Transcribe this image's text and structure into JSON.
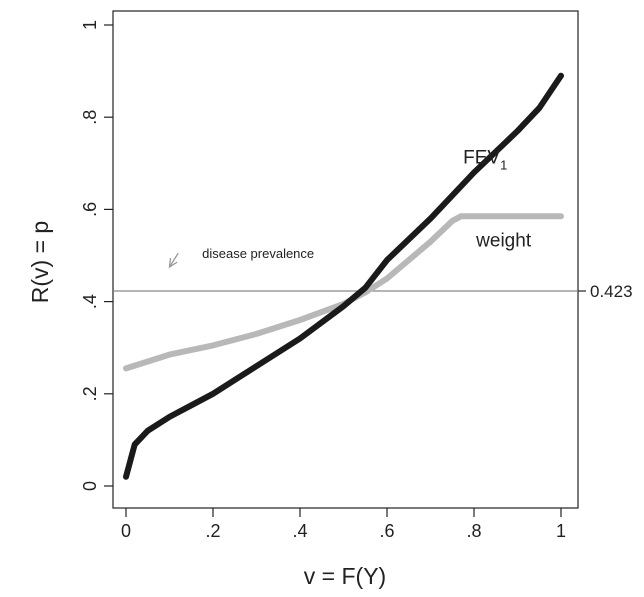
{
  "chart_data": {
    "type": "line",
    "xlabel": "v = F(Y)",
    "ylabel": "R(v) = p",
    "xlim": [
      0,
      1
    ],
    "ylim": [
      0,
      1
    ],
    "x_ticks": [
      {
        "value": 0,
        "label": "0"
      },
      {
        "value": 0.2,
        "label": ".2"
      },
      {
        "value": 0.4,
        "label": ".4"
      },
      {
        "value": 0.6,
        "label": ".6"
      },
      {
        "value": 0.8,
        "label": ".8"
      },
      {
        "value": 1,
        "label": "1"
      }
    ],
    "y_ticks": [
      {
        "value": 0,
        "label": "0"
      },
      {
        "value": 0.2,
        "label": ".2"
      },
      {
        "value": 0.4,
        "label": ".4"
      },
      {
        "value": 0.6,
        "label": ".6"
      },
      {
        "value": 0.8,
        "label": ".8"
      },
      {
        "value": 1,
        "label": "1"
      }
    ],
    "grid": false,
    "series": [
      {
        "name": "FEV",
        "name_subscript": "1",
        "color": "#1a1a1a",
        "x": [
          0.0,
          0.02,
          0.05,
          0.1,
          0.15,
          0.2,
          0.3,
          0.4,
          0.5,
          0.55,
          0.6,
          0.7,
          0.8,
          0.9,
          0.95,
          1.0
        ],
        "y": [
          0.02,
          0.09,
          0.12,
          0.15,
          0.175,
          0.2,
          0.26,
          0.32,
          0.39,
          0.43,
          0.49,
          0.58,
          0.68,
          0.77,
          0.82,
          0.89
        ]
      },
      {
        "name": "weight",
        "color": "#b8b8b8",
        "x": [
          0.0,
          0.05,
          0.1,
          0.2,
          0.3,
          0.4,
          0.5,
          0.55,
          0.6,
          0.7,
          0.75,
          0.77,
          0.8,
          0.9,
          1.0
        ],
        "y": [
          0.255,
          0.27,
          0.285,
          0.305,
          0.33,
          0.36,
          0.395,
          0.42,
          0.45,
          0.53,
          0.575,
          0.585,
          0.585,
          0.585,
          0.585
        ]
      }
    ],
    "reference_line": {
      "y": 0.423,
      "label": "0.423",
      "color": "#888888"
    },
    "annotations": [
      {
        "text": "disease prevalence",
        "arrow_from": [
          0.12,
          0.505
        ],
        "arrow_to": [
          0.1,
          0.475
        ]
      }
    ]
  }
}
